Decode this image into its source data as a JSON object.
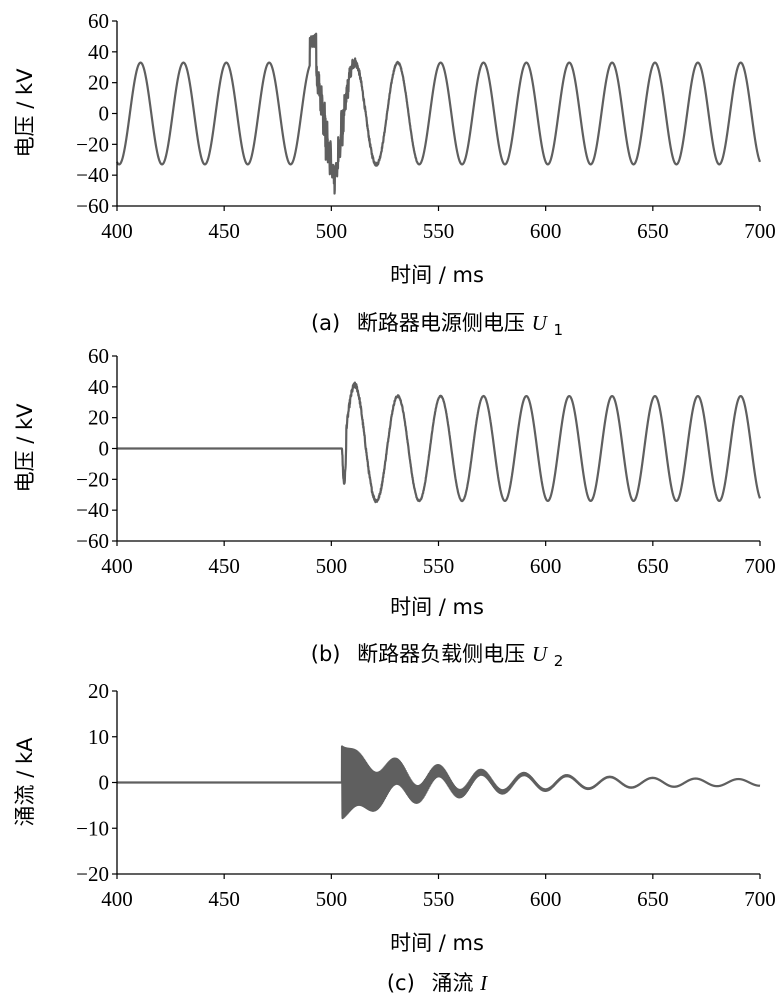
{
  "chart_data": [
    {
      "type": "line",
      "caption_label": "(a)",
      "caption_text": "断路器电源侧电压",
      "caption_var": "U",
      "caption_sub": "1",
      "xlabel": "时间 / ms",
      "ylabel": "电压 / kV",
      "xlim": [
        400,
        700
      ],
      "ylim": [
        -60,
        60
      ],
      "xticks": [
        400,
        450,
        500,
        550,
        600,
        650,
        700
      ],
      "yticks": [
        60,
        40,
        20,
        0,
        -20,
        -40,
        -60
      ],
      "series": [
        {
          "description": "sinusoid, amplitude ~33 kV, period 20 ms, peaks near 411 ms; disturbance around 490-512 ms with spikes to about +52 / -40 kV",
          "amplitude": 33,
          "period_ms": 20,
          "first_peak_ms": 411,
          "disturbance_start_ms": 490,
          "disturbance_end_ms": 512,
          "disturbance_max": 52,
          "disturbance_min": -40
        }
      ],
      "color": "#5f5f5f",
      "grid": false
    },
    {
      "type": "line",
      "caption_label": "(b)",
      "caption_text": "断路器负载侧电压",
      "caption_var": "U",
      "caption_sub": "2",
      "xlabel": "时间 / ms",
      "ylabel": "电压 / kV",
      "xlim": [
        400,
        700
      ],
      "ylim": [
        -60,
        60
      ],
      "xticks": [
        400,
        450,
        500,
        550,
        600,
        650,
        700
      ],
      "yticks": [
        60,
        40,
        20,
        0,
        -20,
        -40,
        -60
      ],
      "series": [
        {
          "description": "0 kV until ~505 ms, then sinusoid amplitude ~34 kV (period 20 ms), initial oscillation peaking ~41 kV at ~511 ms and dipping ~-24 kV at ~506 ms",
          "zero_until_ms": 505,
          "amplitude": 34,
          "period_ms": 20,
          "first_peak_ms": 511,
          "first_peak_value": 41,
          "initial_dip": -24
        }
      ],
      "color": "#5f5f5f",
      "grid": false
    },
    {
      "type": "line",
      "caption_label": "(c)",
      "caption_text": "涌流",
      "caption_var": "I",
      "caption_sub": "",
      "xlabel": "时间 / ms",
      "ylabel": "涌流 / kA",
      "xlim": [
        400,
        700
      ],
      "ylim": [
        -20,
        20
      ],
      "xticks": [
        400,
        450,
        500,
        550,
        600,
        650,
        700
      ],
      "yticks": [
        20,
        10,
        0,
        -10,
        -20
      ],
      "series": [
        {
          "description": "0 kA until ~505 ms, then high-frequency inrush oscillation with envelope decaying from about ±8 kA to ±0.5 kA by 700 ms",
          "zero_until_ms": 505,
          "initial_envelope": 8,
          "final_envelope": 0.5,
          "period_ms": 20
        }
      ],
      "color": "#5f5f5f",
      "grid": false
    }
  ]
}
